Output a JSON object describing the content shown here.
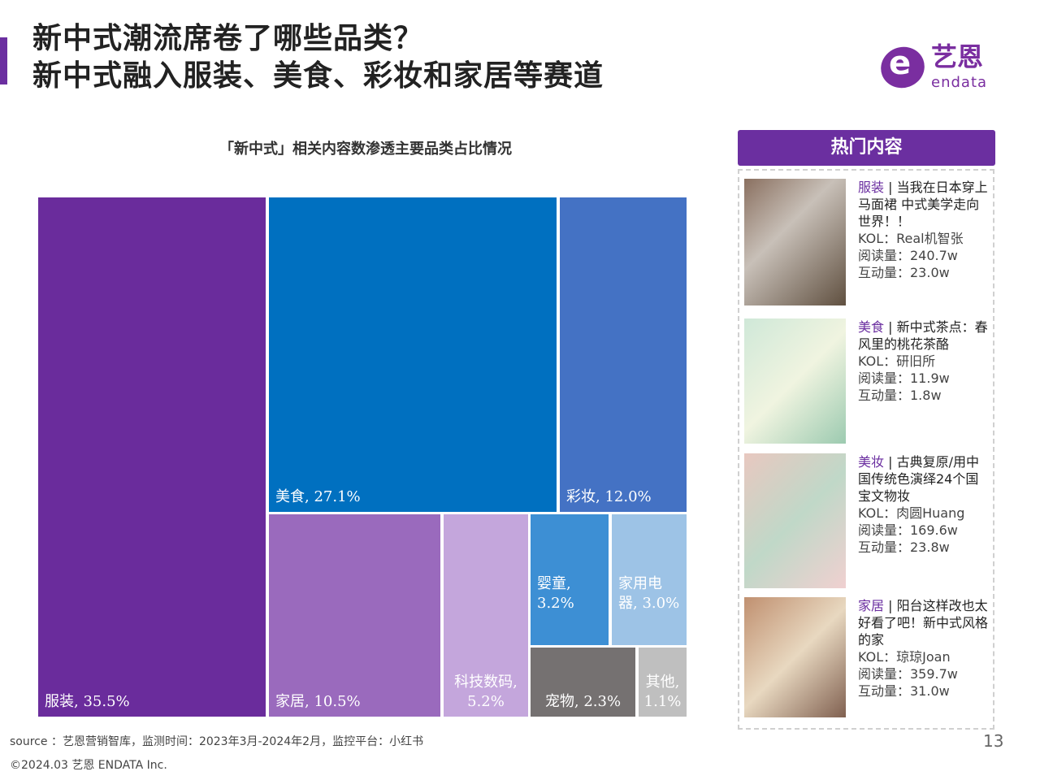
{
  "header": {
    "title_line1": "新中式潮流席卷了哪些品类？",
    "title_line2": "新中式融入服装、美食、彩妆和家居等赛道",
    "logo_cn": "艺恩",
    "logo_en": "endata"
  },
  "chart_data": {
    "type": "treemap",
    "title": "「新中式」相关内容数渗透主要品类占比情况",
    "unit": "%",
    "categories": [
      "服装",
      "美食",
      "彩妆",
      "家居",
      "科技数码",
      "婴童",
      "家用电器",
      "宠物",
      "其他"
    ],
    "values": [
      35.5,
      27.1,
      12.0,
      10.5,
      5.2,
      3.2,
      3.0,
      2.3,
      1.1
    ],
    "labels": [
      "服装, 35.5%",
      "美食, 27.1%",
      "彩妆, 12.0%",
      "家居, 10.5%",
      "科技数码, 5.2%",
      "婴童, 3.2%",
      "家用电器, 3.0%",
      "宠物, 2.3%",
      "其他, 1.1%"
    ],
    "colors": [
      "#6a2c9c",
      "#0070c0",
      "#4472c4",
      "#9a6abd",
      "#c4a6dc",
      "#3d8fd4",
      "#9dc3e6",
      "#757171",
      "#bfbfbf"
    ]
  },
  "panel": {
    "title": "热门内容",
    "items": [
      {
        "category": "服装",
        "title": "当我在日本穿上马面裙 中式美学走向世界！！",
        "kol": "KOL：Real机智张",
        "reads": "阅读量：240.7w",
        "interactions": "互动量：23.0w"
      },
      {
        "category": "美食",
        "title": "新中式茶点：春风里的桃花茶酪",
        "kol": "KOL：研旧所",
        "reads": "阅读量：11.9w",
        "interactions": "互动量：1.8w"
      },
      {
        "category": "美妆",
        "title": "古典复原/用中国传统色演绎24个国宝文物妆",
        "kol": "KOL：肉圆Huang",
        "reads": "阅读量：169.6w",
        "interactions": "互动量：23.8w"
      },
      {
        "category": "家居",
        "title": "阳台这样改也太好看了吧！新中式风格的家",
        "kol": "KOL：琼琼Joan",
        "reads": "阅读量：359.7w",
        "interactions": "互动量：31.0w"
      }
    ]
  },
  "footer": {
    "source": "source ：艺恩营销智库，监测时间：2023年3月-2024年2月，监控平台：小红书",
    "copyright": "©2024.03  艺恩 ENDATA Inc.",
    "page": "13"
  }
}
